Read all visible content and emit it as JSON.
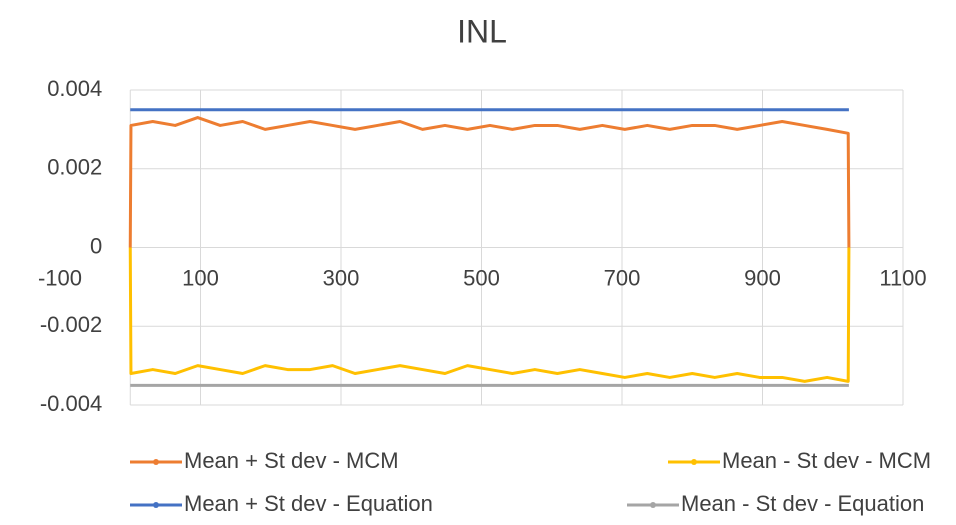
{
  "chart_data": {
    "type": "line",
    "title": "INL",
    "x": [
      0,
      1,
      32,
      64,
      96,
      128,
      160,
      192,
      224,
      256,
      288,
      320,
      352,
      384,
      416,
      448,
      480,
      512,
      544,
      576,
      608,
      640,
      672,
      704,
      736,
      768,
      800,
      832,
      864,
      896,
      928,
      960,
      992,
      1022,
      1023
    ],
    "series": [
      {
        "name": "Mean + St dev - MCM",
        "color": "#ed7d31",
        "values": [
          0,
          0.0031,
          0.0032,
          0.0031,
          0.0033,
          0.0031,
          0.0032,
          0.003,
          0.0031,
          0.0032,
          0.0031,
          0.003,
          0.0031,
          0.0032,
          0.003,
          0.0031,
          0.003,
          0.0031,
          0.003,
          0.0031,
          0.0031,
          0.003,
          0.0031,
          0.003,
          0.0031,
          0.003,
          0.0031,
          0.0031,
          0.003,
          0.0031,
          0.0032,
          0.0031,
          0.003,
          0.0029,
          0
        ]
      },
      {
        "name": "Mean - St dev - MCM",
        "color": "#ffc000",
        "values": [
          0,
          -0.0032,
          -0.0031,
          -0.0032,
          -0.003,
          -0.0031,
          -0.0032,
          -0.003,
          -0.0031,
          -0.0031,
          -0.003,
          -0.0032,
          -0.0031,
          -0.003,
          -0.0031,
          -0.0032,
          -0.003,
          -0.0031,
          -0.0032,
          -0.0031,
          -0.0032,
          -0.0031,
          -0.0032,
          -0.0033,
          -0.0032,
          -0.0033,
          -0.0032,
          -0.0033,
          -0.0032,
          -0.0033,
          -0.0033,
          -0.0034,
          -0.0033,
          -0.0034,
          0
        ]
      },
      {
        "name": "Mean + St dev - Equation",
        "color": "#4472c4",
        "values": [
          0.0035,
          0.0035,
          0.0035,
          0.0035,
          0.0035,
          0.0035,
          0.0035,
          0.0035,
          0.0035,
          0.0035,
          0.0035,
          0.0035,
          0.0035,
          0.0035,
          0.0035,
          0.0035,
          0.0035,
          0.0035,
          0.0035,
          0.0035,
          0.0035,
          0.0035,
          0.0035,
          0.0035,
          0.0035,
          0.0035,
          0.0035,
          0.0035,
          0.0035,
          0.0035,
          0.0035,
          0.0035,
          0.0035,
          0.0035,
          0.0035
        ]
      },
      {
        "name": "Mean - St dev - Equation",
        "color": "#a5a5a5",
        "values": [
          -0.0035,
          -0.0035,
          -0.0035,
          -0.0035,
          -0.0035,
          -0.0035,
          -0.0035,
          -0.0035,
          -0.0035,
          -0.0035,
          -0.0035,
          -0.0035,
          -0.0035,
          -0.0035,
          -0.0035,
          -0.0035,
          -0.0035,
          -0.0035,
          -0.0035,
          -0.0035,
          -0.0035,
          -0.0035,
          -0.0035,
          -0.0035,
          -0.0035,
          -0.0035,
          -0.0035,
          -0.0035,
          -0.0035,
          -0.0035,
          -0.0035,
          -0.0035,
          -0.0035,
          -0.0035,
          -0.0035
        ]
      }
    ],
    "xlim": [
      -100,
      1100
    ],
    "xticks": [
      -100,
      100,
      300,
      500,
      700,
      900,
      1100
    ],
    "ylim": [
      -0.004,
      0.004
    ],
    "yticks": [
      -0.004,
      -0.002,
      0,
      0.002,
      0.004
    ],
    "grid": true
  }
}
